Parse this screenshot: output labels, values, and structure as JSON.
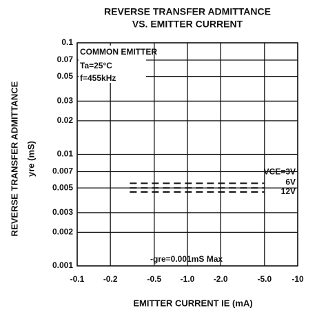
{
  "chart_data": {
    "type": "line",
    "title": "REVERSE TRANSFER ADMITTANCE",
    "subtitle": "VS. EMITTER CURRENT",
    "x_label": "EMITTER CURRENT   IE (mA)",
    "y_label": "REVERSE TRANSFER ADMITTANCE",
    "y_unit_label": "yre (mS)",
    "log_x": true,
    "log_y": true,
    "grid": true,
    "xlim": [
      -0.1,
      -10
    ],
    "ylim": [
      0.001,
      0.1
    ],
    "xticks": [
      -0.1,
      -0.2,
      -0.5,
      {
        "value": -1,
        "label": "-1.0"
      },
      {
        "value": -2,
        "label": "-2.0"
      },
      {
        "value": -5,
        "label": "-5.0"
      },
      -10
    ],
    "yticks": [
      0.001,
      0.002,
      0.003,
      0.005,
      0.007,
      0.01,
      0.02,
      0.03,
      0.05,
      0.07,
      0.1
    ],
    "annotations": [
      "COMMON EMITTER",
      "Ta=25°C",
      "f=455kHz",
      "-gre=0.001mS Max"
    ],
    "series": [
      {
        "name": "VCE=3V",
        "color": "#111111",
        "x": [
          -0.3,
          -5
        ],
        "values": [
          0.0055,
          0.0055
        ]
      },
      {
        "name": "6V",
        "color": "#111111",
        "x": [
          -0.3,
          -5
        ],
        "values": [
          0.005,
          0.005
        ]
      },
      {
        "name": "12V",
        "color": "#111111",
        "x": [
          -0.3,
          -5
        ],
        "values": [
          0.0046,
          0.0046
        ]
      }
    ]
  }
}
